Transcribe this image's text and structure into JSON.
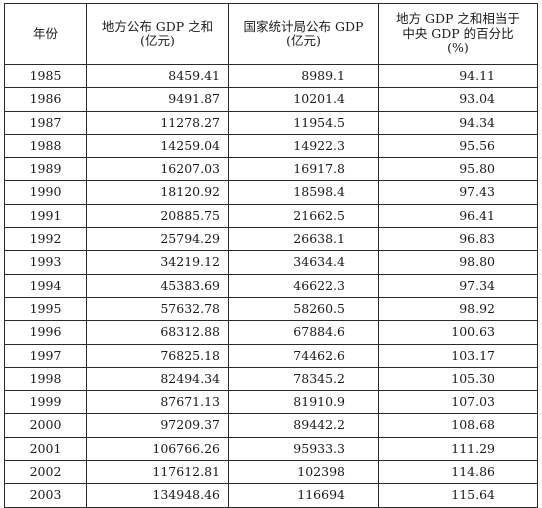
{
  "table": {
    "headers": {
      "year": "年份",
      "local_gdp_line1": "地方公布 GDP 之和",
      "local_gdp_line2": "(亿元)",
      "nbs_gdp_line1": "国家统计局公布 GDP",
      "nbs_gdp_line2": "(亿元)",
      "ratio_line1": "地方 GDP 之和相当于",
      "ratio_line2": "中央 GDP 的百分比",
      "ratio_line3": "(%)"
    },
    "rows": [
      {
        "year": "1985",
        "local": "8459.41",
        "nbs": "8989.1",
        "pct": "94.11"
      },
      {
        "year": "1986",
        "local": "9491.87",
        "nbs": "10201.4",
        "pct": "93.04"
      },
      {
        "year": "1987",
        "local": "11278.27",
        "nbs": "11954.5",
        "pct": "94.34"
      },
      {
        "year": "1988",
        "local": "14259.04",
        "nbs": "14922.3",
        "pct": "95.56"
      },
      {
        "year": "1989",
        "local": "16207.03",
        "nbs": "16917.8",
        "pct": "95.80"
      },
      {
        "year": "1990",
        "local": "18120.92",
        "nbs": "18598.4",
        "pct": "97.43"
      },
      {
        "year": "1991",
        "local": "20885.75",
        "nbs": "21662.5",
        "pct": "96.41"
      },
      {
        "year": "1992",
        "local": "25794.29",
        "nbs": "26638.1",
        "pct": "96.83"
      },
      {
        "year": "1993",
        "local": "34219.12",
        "nbs": "34634.4",
        "pct": "98.80"
      },
      {
        "year": "1994",
        "local": "45383.69",
        "nbs": "46622.3",
        "pct": "97.34"
      },
      {
        "year": "1995",
        "local": "57632.78",
        "nbs": "58260.5",
        "pct": "98.92"
      },
      {
        "year": "1996",
        "local": "68312.88",
        "nbs": "67884.6",
        "pct": "100.63"
      },
      {
        "year": "1997",
        "local": "76825.18",
        "nbs": "74462.6",
        "pct": "103.17"
      },
      {
        "year": "1998",
        "local": "82494.34",
        "nbs": "78345.2",
        "pct": "105.30"
      },
      {
        "year": "1999",
        "local": "87671.13",
        "nbs": "81910.9",
        "pct": "107.03"
      },
      {
        "year": "2000",
        "local": "97209.37",
        "nbs": "89442.2",
        "pct": "108.68"
      },
      {
        "year": "2001",
        "local": "106766.26",
        "nbs": "95933.3",
        "pct": "111.29"
      },
      {
        "year": "2002",
        "local": "117612.81",
        "nbs": "102398",
        "pct": "114.86"
      },
      {
        "year": "2003",
        "local": "134948.46",
        "nbs": "116694",
        "pct": "115.64"
      }
    ]
  }
}
